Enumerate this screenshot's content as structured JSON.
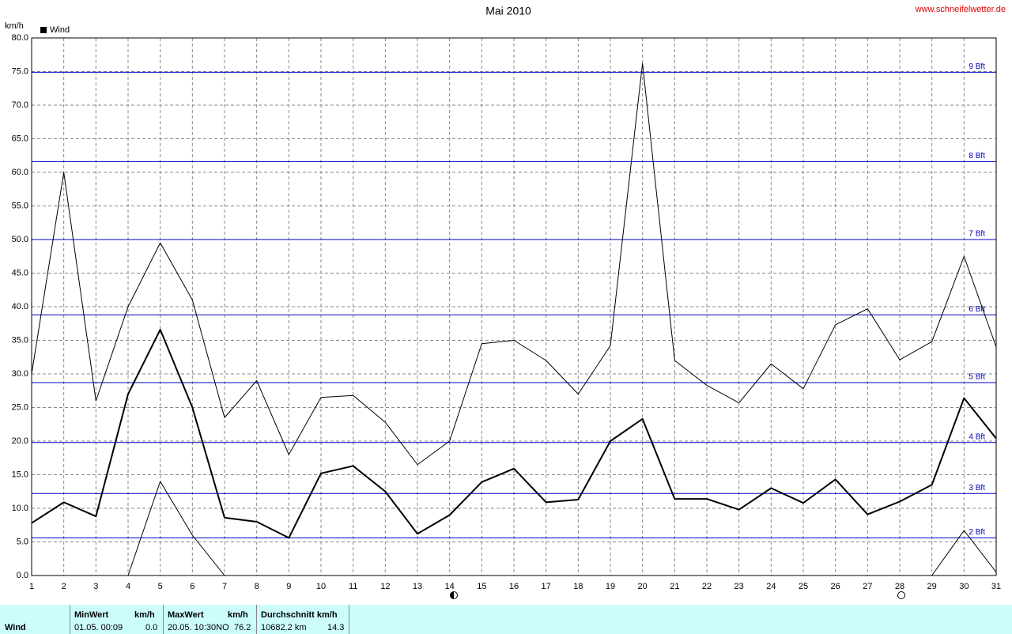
{
  "chart_data": {
    "type": "line",
    "title": "Mai 2010",
    "source": "www.schneifelwetter.de",
    "y_label": "km/h",
    "legend": "Wind",
    "x": [
      1,
      2,
      3,
      4,
      5,
      6,
      7,
      8,
      9,
      10,
      11,
      12,
      13,
      14,
      15,
      16,
      17,
      18,
      19,
      20,
      21,
      22,
      23,
      24,
      25,
      26,
      27,
      28,
      29,
      30,
      31
    ],
    "xlim": [
      1,
      31
    ],
    "xticks": [
      1,
      2,
      3,
      4,
      5,
      6,
      7,
      8,
      9,
      10,
      11,
      12,
      13,
      14,
      15,
      16,
      17,
      18,
      19,
      20,
      21,
      22,
      23,
      24,
      25,
      26,
      27,
      28,
      29,
      30,
      31
    ],
    "ylim": [
      0,
      80
    ],
    "yticks": [
      {
        "value": 0,
        "label": "0.0"
      },
      {
        "value": 5,
        "label": "5.0"
      },
      {
        "value": 10,
        "label": "10.0"
      },
      {
        "value": 15,
        "label": "15.0"
      },
      {
        "value": 20,
        "label": "20.0"
      },
      {
        "value": 25,
        "label": "25.0"
      },
      {
        "value": 30,
        "label": "30.0"
      },
      {
        "value": 35,
        "label": "35.0"
      },
      {
        "value": 40,
        "label": "40.0"
      },
      {
        "value": 45,
        "label": "45.0"
      },
      {
        "value": 50,
        "label": "50.0"
      },
      {
        "value": 55,
        "label": "55.0"
      },
      {
        "value": 60,
        "label": "60.0"
      },
      {
        "value": 65,
        "label": "65.0"
      },
      {
        "value": 70,
        "label": "70.0"
      },
      {
        "value": 75,
        "label": "75.0"
      },
      {
        "value": 80,
        "label": "80.0"
      }
    ],
    "grid": true,
    "reference_lines": [
      {
        "value": 5.6,
        "label": "2 Bft"
      },
      {
        "value": 12.2,
        "label": "3 Bft"
      },
      {
        "value": 19.8,
        "label": "4 Bft"
      },
      {
        "value": 28.7,
        "label": "5 Bft"
      },
      {
        "value": 38.8,
        "label": "6 Bft"
      },
      {
        "value": 50,
        "label": "7 Bft"
      },
      {
        "value": 61.6,
        "label": "8 Bft"
      },
      {
        "value": 74.9,
        "label": "9 Bft"
      }
    ],
    "reference_color": "#0000c0",
    "series": [
      {
        "color": "#000000",
        "line_width": 1,
        "values": [
          30,
          60,
          26,
          40,
          49.5,
          41,
          23.5,
          29,
          18,
          26.5,
          26.8,
          22.8,
          16.5,
          20,
          34.5,
          35,
          32,
          27,
          34.2,
          76.2,
          32,
          28.3,
          25.7,
          31.5,
          27.8,
          37.3,
          39.7,
          32.1,
          34.8,
          47.5,
          34
        ]
      },
      {
        "color": "#000000",
        "line_width": 2,
        "values": [
          7.8,
          10.9,
          8.8,
          27,
          36.6,
          25,
          8.6,
          8,
          5.6,
          15.2,
          16.3,
          12.5,
          6.2,
          9,
          13.9,
          15.9,
          10.9,
          11.3,
          20,
          23.3,
          11.4,
          11.4,
          9.8,
          13,
          10.8,
          14.3,
          9.1,
          11,
          13.5,
          26.4,
          20.4
        ]
      },
      {
        "color": "#000000",
        "line_width": 1,
        "values": [
          null,
          null,
          null,
          0,
          14,
          6,
          0,
          null,
          null,
          null,
          null,
          null,
          null,
          null,
          null,
          null,
          null,
          null,
          0,
          0,
          null,
          null,
          null,
          null,
          null,
          null,
          null,
          null,
          0,
          6.7,
          0.5
        ]
      }
    ]
  },
  "summary": {
    "row_label": "Wind",
    "min": {
      "header": "MinWert",
      "unit": "km/h",
      "time": "01.05.  00:09",
      "value": "0.0"
    },
    "max": {
      "header": "MaxWert",
      "unit": "km/h",
      "time": "20.05.  10:30NO",
      "value": "76.2"
    },
    "avg": {
      "header": "Durchschnitt km/h",
      "distance": "10682.2 km",
      "value": "14.3"
    }
  }
}
